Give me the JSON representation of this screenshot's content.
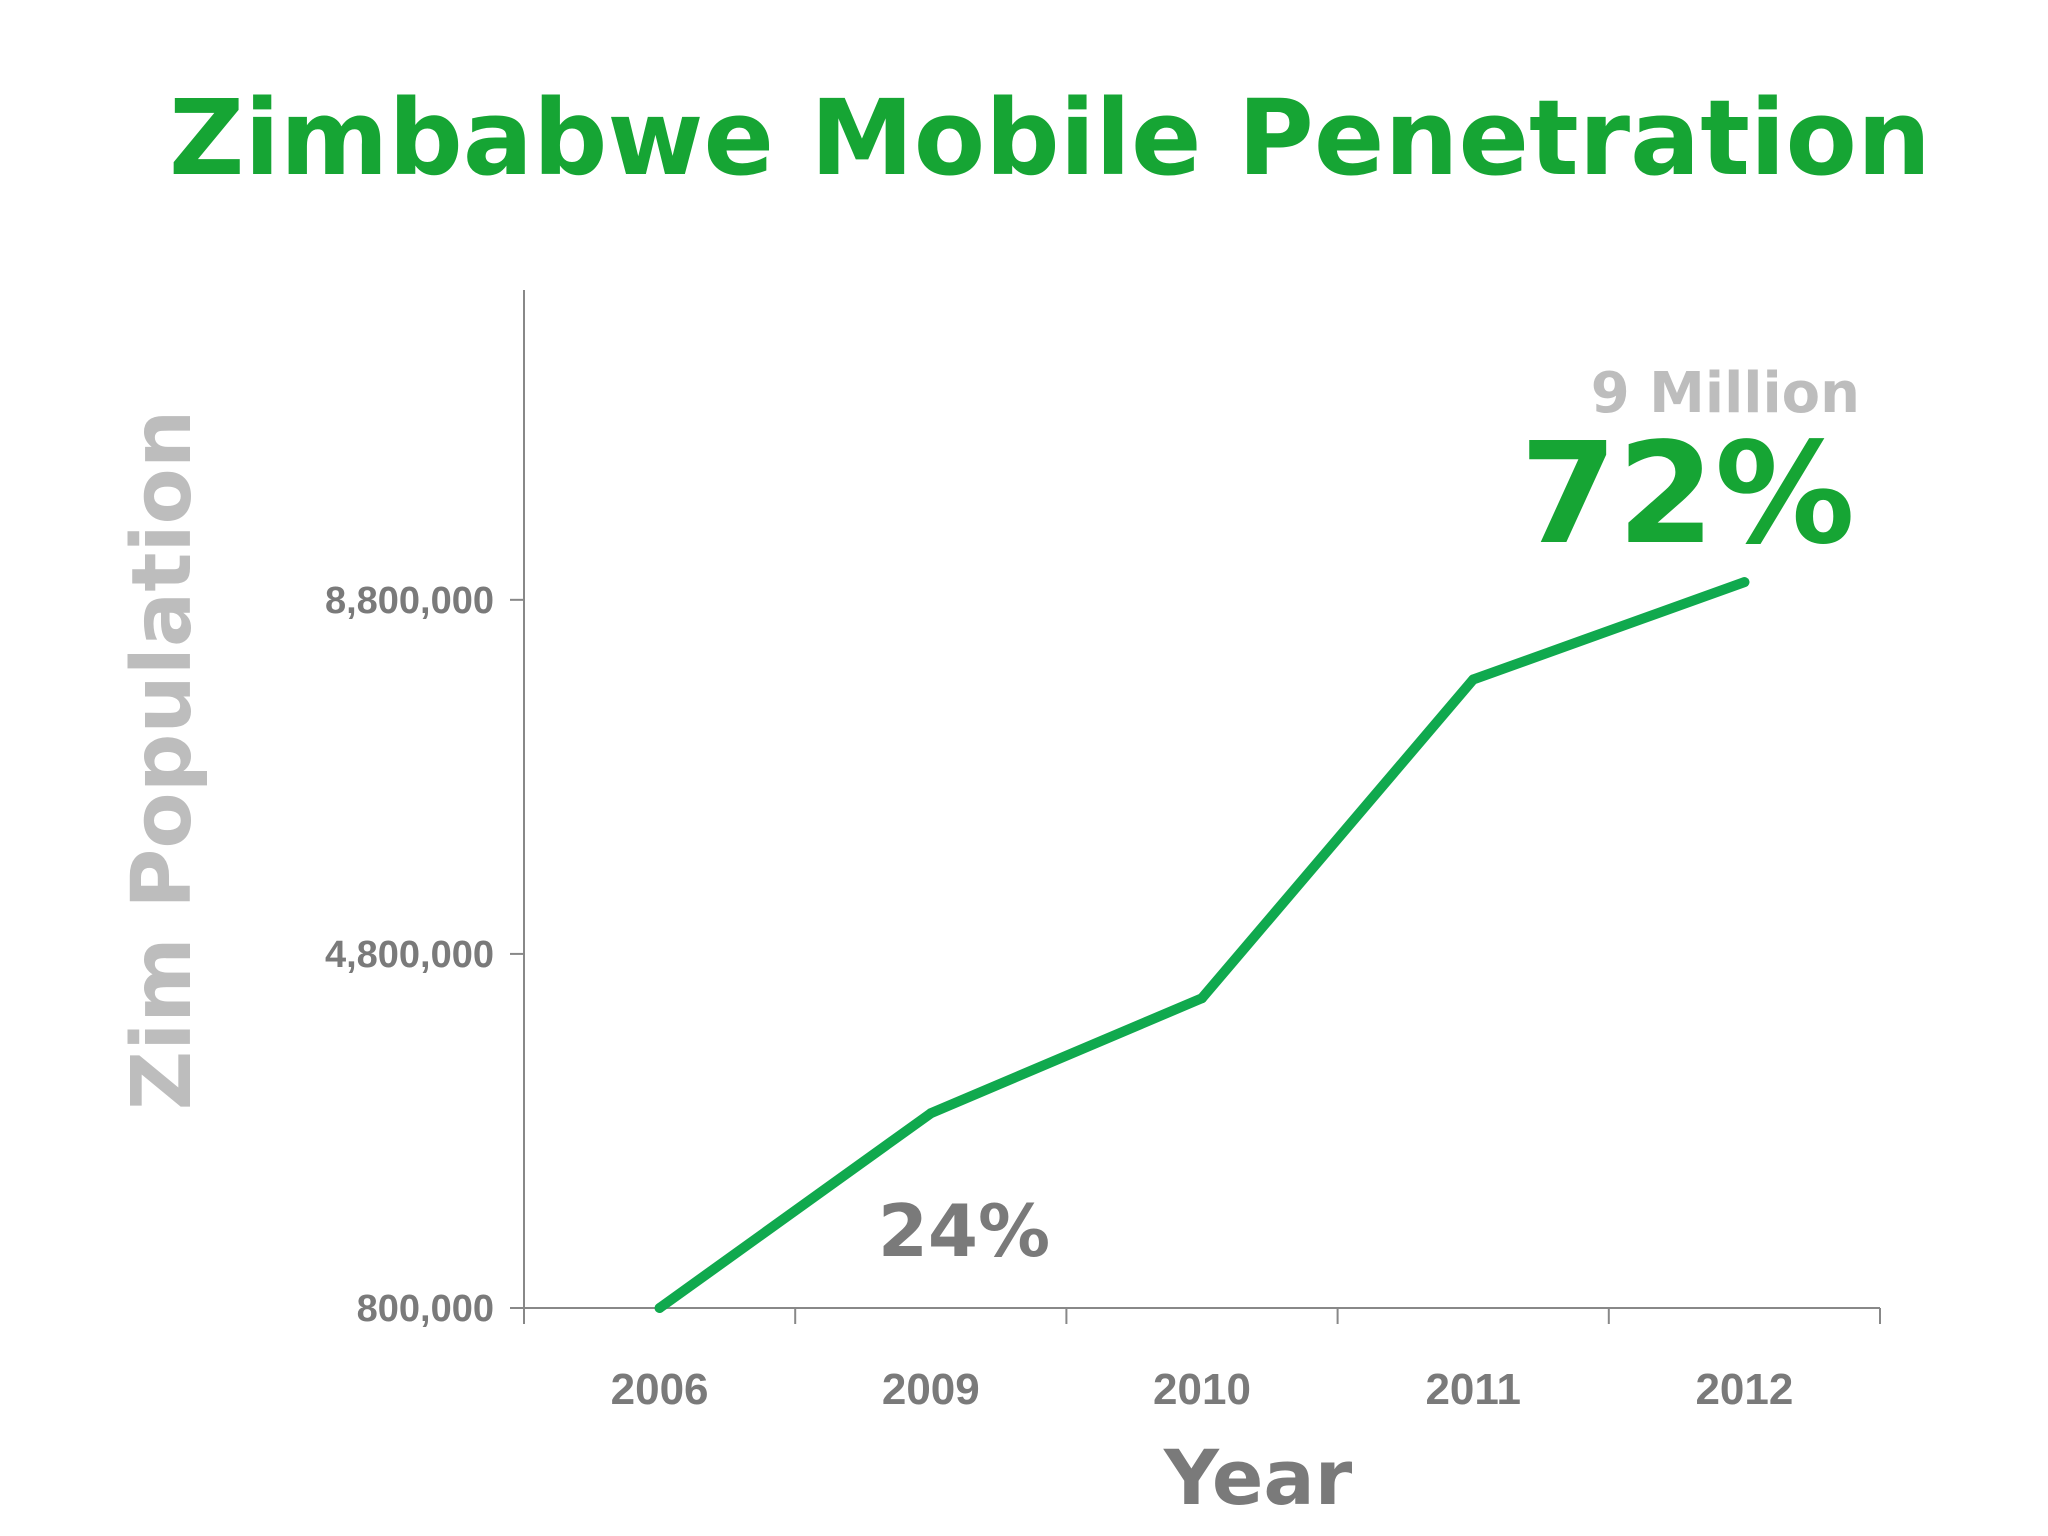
{
  "colors": {
    "accent_green": "#16a534",
    "line_green": "#10a94e",
    "text_gray": "#7a7a7a",
    "light_gray": "#bdbdbd",
    "axis": "#888888"
  },
  "chart_data": {
    "type": "line",
    "title": "Zimbabwe Mobile Penetration",
    "xlabel": "Year",
    "ylabel": "Zim Population",
    "categories": [
      "2006",
      "2009",
      "2010",
      "2011",
      "2012"
    ],
    "series": [
      {
        "values": [
          800000,
          3000000,
          4300000,
          7900000,
          9000000
        ]
      }
    ],
    "y_ticks": [
      {
        "value": 800000,
        "label": "800,000"
      },
      {
        "value": 4800000,
        "label": "4,800,000"
      },
      {
        "value": 8800000,
        "label": "8,800,000"
      }
    ],
    "ylim": [
      800000,
      12300000
    ],
    "grid": false,
    "annotations": {
      "start_pct": "24%",
      "end_sub": "9 Million",
      "end_pct": "72%"
    }
  }
}
